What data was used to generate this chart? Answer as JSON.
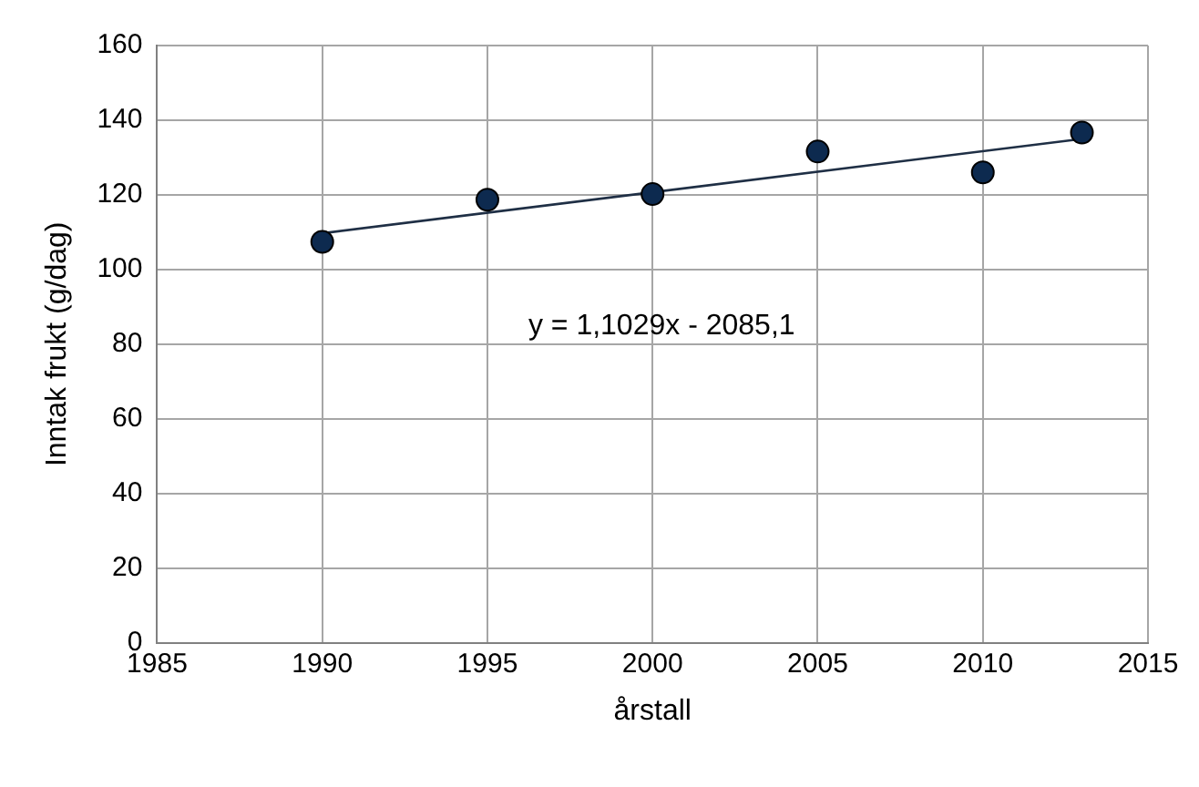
{
  "chart_data": {
    "type": "scatter",
    "xlabel": "årstall",
    "ylabel": "Inntak frukt (g/dag)",
    "xlim": [
      1985,
      2015
    ],
    "xticks": [
      1985,
      1990,
      1995,
      2000,
      2005,
      2010,
      2015
    ],
    "ylim": [
      0,
      160
    ],
    "yticks": [
      0,
      20,
      40,
      60,
      80,
      100,
      120,
      140,
      160
    ],
    "grid": true,
    "legend": false,
    "series": [
      {
        "type": "scatter",
        "marker": "circle",
        "color": "#0d2a4f",
        "x": [
          1990,
          1995,
          2000,
          2005,
          2010,
          2013
        ],
        "values": [
          107.4,
          118.7,
          120.2,
          131.6,
          126,
          136.7
        ]
      },
      {
        "type": "line",
        "color": "#1f2f45",
        "x": [
          1990,
          2013
        ],
        "values": [
          109.7,
          135
        ]
      }
    ],
    "annotations": [
      "y = 1,1029x - 2085,1"
    ]
  }
}
